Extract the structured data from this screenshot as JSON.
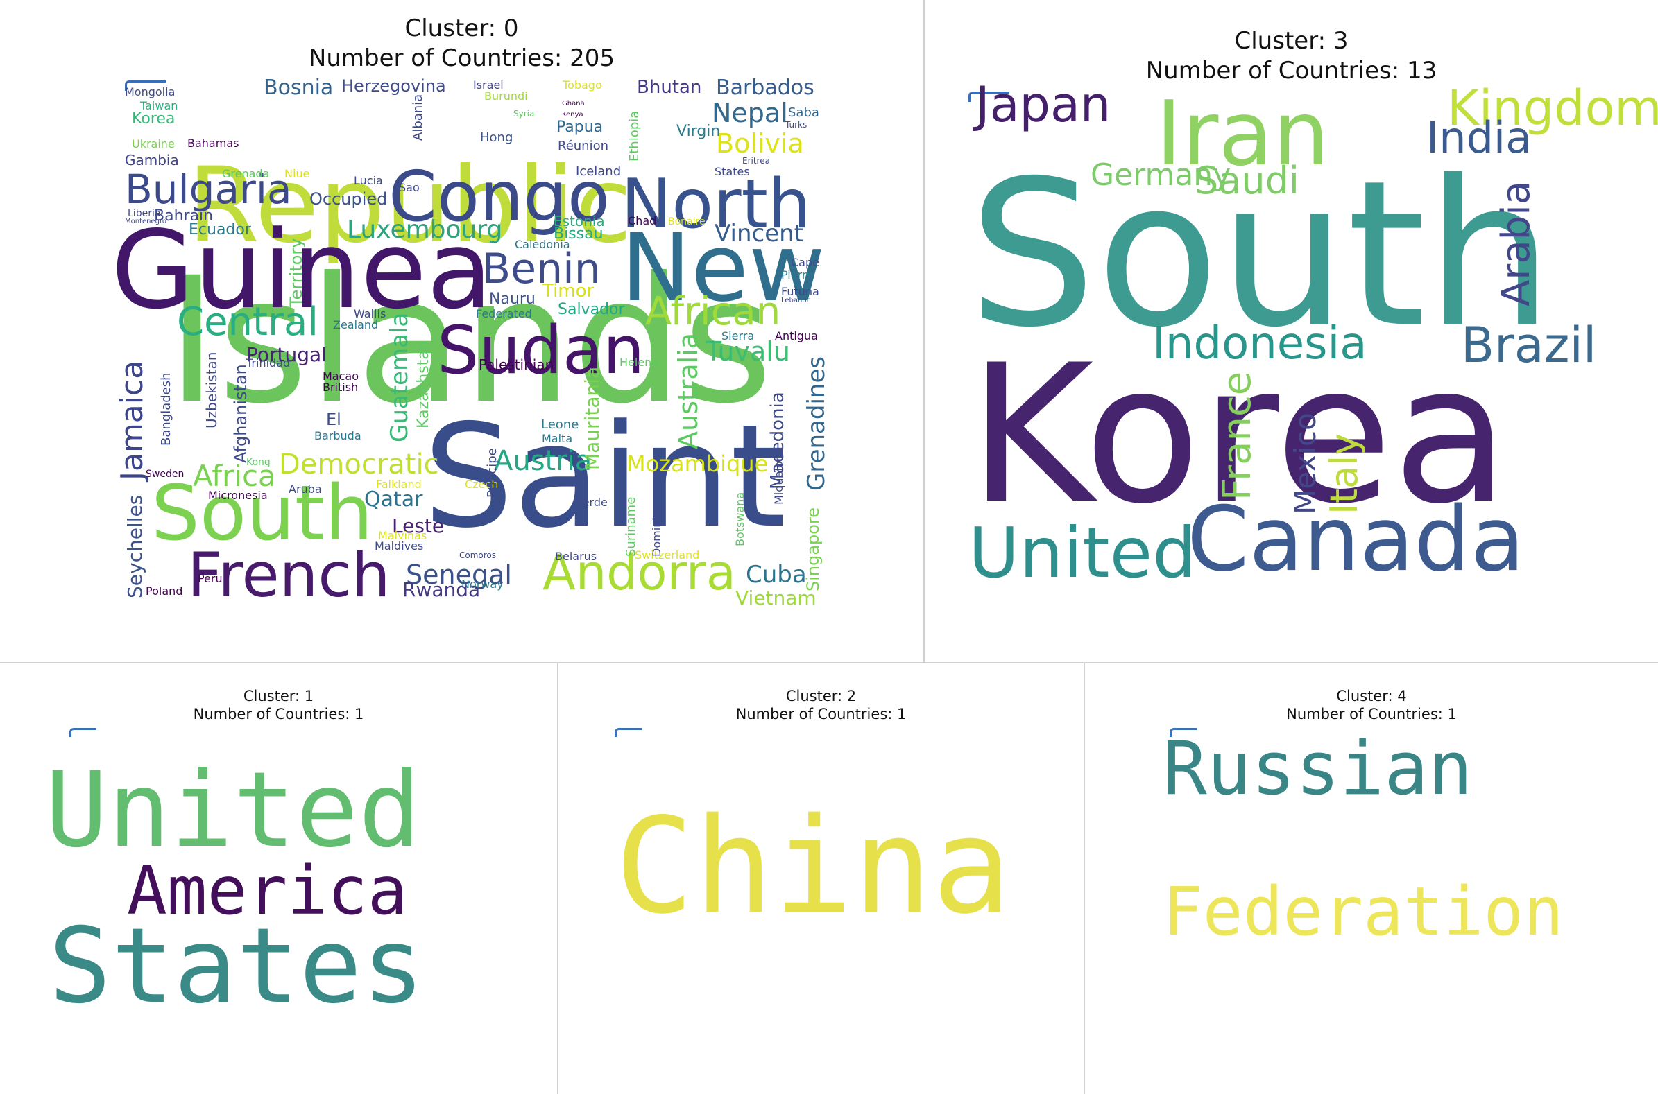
{
  "chart_data": [
    {
      "type": "wordcloud",
      "title_line1": "Cluster: 0",
      "title_line2": "Number of Countries: 205",
      "words": [
        {
          "text": "Islands",
          "color": "#6cc45c"
        },
        {
          "text": "Republic",
          "color": "#bfdc3a"
        },
        {
          "text": "Saint",
          "color": "#3a4d8b"
        },
        {
          "text": "Guinea",
          "color": "#42176a"
        },
        {
          "text": "New",
          "color": "#2f6e8d"
        },
        {
          "text": "Congo",
          "color": "#3b4b89"
        },
        {
          "text": "North",
          "color": "#37528c"
        },
        {
          "text": "Sudan",
          "color": "#46136a"
        },
        {
          "text": "South",
          "color": "#7cd250"
        },
        {
          "text": "French",
          "color": "#471a6c"
        },
        {
          "text": "Andorra",
          "color": "#a8db34"
        },
        {
          "text": "Bulgaria",
          "color": "#3d4a89"
        },
        {
          "text": "Central",
          "color": "#28ae80"
        },
        {
          "text": "Benin",
          "color": "#3e4c8a"
        },
        {
          "text": "African",
          "color": "#9fda3a"
        },
        {
          "text": "Jamaica",
          "color": "#3d468a"
        },
        {
          "text": "Democratic",
          "color": "#bfe02f"
        },
        {
          "text": "Mozambique",
          "color": "#d8e219"
        },
        {
          "text": "Austria",
          "color": "#24a884"
        },
        {
          "text": "Africa",
          "color": "#7ad151"
        },
        {
          "text": "Luxembourg",
          "color": "#2ea37f"
        },
        {
          "text": "Senegal",
          "color": "#3b518b"
        },
        {
          "text": "Cuba",
          "color": "#2c738e"
        },
        {
          "text": "Vietnam",
          "color": "#9fda3a"
        },
        {
          "text": "Bolivia",
          "color": "#dde318"
        },
        {
          "text": "Nepal",
          "color": "#31688e"
        },
        {
          "text": "Barbados",
          "color": "#365d8d"
        },
        {
          "text": "Bosnia",
          "color": "#33638d"
        },
        {
          "text": "Herzegovina",
          "color": "#3e4a89"
        },
        {
          "text": "Bhutan",
          "color": "#443983"
        },
        {
          "text": "Vincent",
          "color": "#365c8d"
        },
        {
          "text": "Tuvalu",
          "color": "#3dbc74"
        },
        {
          "text": "Portugal",
          "color": "#482374"
        },
        {
          "text": "Leste",
          "color": "#482071"
        },
        {
          "text": "Qatar",
          "color": "#2c728e"
        },
        {
          "text": "Guatemala",
          "color": "#3aba76"
        },
        {
          "text": "Grenadines",
          "color": "#31678e"
        },
        {
          "text": "Australia",
          "color": "#5ec962"
        },
        {
          "text": "Mauritania",
          "color": "#7ad151"
        },
        {
          "text": "Seychelles",
          "color": "#3b528b"
        },
        {
          "text": "Rwanda",
          "color": "#443a83"
        },
        {
          "text": "Ecuador",
          "color": "#2a788e"
        },
        {
          "text": "Occupied",
          "color": "#3b528b"
        },
        {
          "text": "Bahrain",
          "color": "#3e4989"
        },
        {
          "text": "Gambia",
          "color": "#414487"
        },
        {
          "text": "Korea",
          "color": "#35b779"
        },
        {
          "text": "Mongolia",
          "color": "#3e4c8a"
        },
        {
          "text": "Taiwan",
          "color": "#2ab07f"
        },
        {
          "text": "Ukraine",
          "color": "#7ad151"
        },
        {
          "text": "Palestinian",
          "color": "#440154"
        },
        {
          "text": "Macedonia",
          "color": "#3e4989"
        },
        {
          "text": "Singapore",
          "color": "#7ad151"
        },
        {
          "text": "Salvador",
          "color": "#22a884"
        },
        {
          "text": "Timor",
          "color": "#d8e219"
        },
        {
          "text": "Nauru",
          "color": "#3b528b"
        },
        {
          "text": "Bissau",
          "color": "#22a884"
        },
        {
          "text": "Estonia",
          "color": "#29af7f"
        },
        {
          "text": "Papua",
          "color": "#31688e"
        },
        {
          "text": "Albania",
          "color": "#3e4989"
        },
        {
          "text": "Israel",
          "color": "#414487"
        },
        {
          "text": "Tobago",
          "color": "#dde318"
        },
        {
          "text": "Burundi",
          "color": "#a2da37"
        },
        {
          "text": "Syria",
          "color": "#5ec962"
        },
        {
          "text": "Kenya",
          "color": "#440154"
        },
        {
          "text": "Ghana",
          "color": "#440154"
        },
        {
          "text": "Hong",
          "color": "#3b528b"
        },
        {
          "text": "Réunion",
          "color": "#3e4989"
        },
        {
          "text": "Virgin",
          "color": "#2a788e"
        },
        {
          "text": "Saba",
          "color": "#31688e"
        },
        {
          "text": "Turks",
          "color": "#3e4989"
        },
        {
          "text": "Iceland",
          "color": "#3e4989"
        },
        {
          "text": "States",
          "color": "#3e4989"
        },
        {
          "text": "Eritrea",
          "color": "#3e4989"
        },
        {
          "text": "Lucia",
          "color": "#3e4989"
        },
        {
          "text": "Sao",
          "color": "#3e4989"
        },
        {
          "text": "Bahamas",
          "color": "#440154"
        },
        {
          "text": "Grenada",
          "color": "#5ec962"
        },
        {
          "text": "Niue",
          "color": "#dde318"
        },
        {
          "text": "Liberia",
          "color": "#3e4989"
        },
        {
          "text": "Montenegro",
          "color": "#3e4989"
        },
        {
          "text": "Chad",
          "color": "#440154"
        },
        {
          "text": "Bonaire",
          "color": "#dde318"
        },
        {
          "text": "Caledonia",
          "color": "#2a788e"
        },
        {
          "text": "Cape",
          "color": "#3e4989"
        },
        {
          "text": "Pierre",
          "color": "#2a788e"
        },
        {
          "text": "Futuna",
          "color": "#3e4989"
        },
        {
          "text": "Lebanon",
          "color": "#3e4989"
        },
        {
          "text": "Antigua",
          "color": "#440154"
        },
        {
          "text": "Sierra",
          "color": "#2a788e"
        },
        {
          "text": "Helena",
          "color": "#5ec962"
        },
        {
          "text": "Wallis",
          "color": "#3e4989"
        },
        {
          "text": "Zealand",
          "color": "#2a788e"
        },
        {
          "text": "Federated",
          "color": "#2a788e"
        },
        {
          "text": "Macao",
          "color": "#440154"
        },
        {
          "text": "British",
          "color": "#440154"
        },
        {
          "text": "El",
          "color": "#3e4989"
        },
        {
          "text": "Barbuda",
          "color": "#2a788e"
        },
        {
          "text": "Kong",
          "color": "#5ec962"
        },
        {
          "text": "Aruba",
          "color": "#3e4989"
        },
        {
          "text": "Micronesia",
          "color": "#440154"
        },
        {
          "text": "Falkland",
          "color": "#dde318"
        },
        {
          "text": "Czech",
          "color": "#dde318"
        },
        {
          "text": "Malvinas",
          "color": "#dde318"
        },
        {
          "text": "Maldives",
          "color": "#3e4989"
        },
        {
          "text": "Comoros",
          "color": "#3e4989"
        },
        {
          "text": "Belarus",
          "color": "#3e4989"
        },
        {
          "text": "Switzerland",
          "color": "#dde318"
        },
        {
          "text": "Norway",
          "color": "#2a788e"
        },
        {
          "text": "Poland",
          "color": "#440154"
        },
        {
          "text": "Peru",
          "color": "#440154"
        },
        {
          "text": "Sweden",
          "color": "#440154"
        },
        {
          "text": "Trinidad",
          "color": "#3e4989"
        },
        {
          "text": "Leone",
          "color": "#2a788e"
        },
        {
          "text": "Malta",
          "color": "#2a788e"
        },
        {
          "text": "Verde",
          "color": "#3e4989"
        },
        {
          "text": "Miquelon",
          "color": "#3e4989"
        },
        {
          "text": "Suriname",
          "color": "#5ec962"
        },
        {
          "text": "Dominica",
          "color": "#3e4989"
        },
        {
          "text": "Botswana",
          "color": "#5ec962"
        },
        {
          "text": "Principe",
          "color": "#3e4989"
        },
        {
          "text": "Kazakhstan",
          "color": "#5ec962"
        },
        {
          "text": "Territory",
          "color": "#5ec962"
        },
        {
          "text": "Afghanistan",
          "color": "#3e4989"
        },
        {
          "text": "Uzbekistan",
          "color": "#3e4989"
        },
        {
          "text": "Bangladesh",
          "color": "#3e4989"
        },
        {
          "text": "Ethiopia",
          "color": "#5ec962"
        }
      ]
    },
    {
      "type": "wordcloud",
      "title_line1": "Cluster: 3",
      "title_line2": "Number of Countries: 13",
      "words": [
        {
          "text": "South",
          "color": "#3e9b92"
        },
        {
          "text": "Korea",
          "color": "#46256e"
        },
        {
          "text": "Canada",
          "color": "#3d5b8e"
        },
        {
          "text": "United",
          "color": "#2e8f8c"
        },
        {
          "text": "Iran",
          "color": "#8fd162"
        },
        {
          "text": "Kingdom",
          "color": "#c1df3a"
        },
        {
          "text": "Japan",
          "color": "#44206b"
        },
        {
          "text": "India",
          "color": "#3b5a8d"
        },
        {
          "text": "Brazil",
          "color": "#3b6a8e"
        },
        {
          "text": "Indonesia",
          "color": "#28968a"
        },
        {
          "text": "Germany",
          "color": "#7cca6a"
        },
        {
          "text": "Saudi",
          "color": "#7ecb67"
        },
        {
          "text": "Arabia",
          "color": "#42478a"
        },
        {
          "text": "France",
          "color": "#86cf5e"
        },
        {
          "text": "Mexico",
          "color": "#42478a"
        },
        {
          "text": "Italy",
          "color": "#bfdc3f"
        }
      ]
    },
    {
      "type": "wordcloud",
      "title_line1": "Cluster: 1",
      "title_line2": "Number of Countries: 1",
      "words": [
        {
          "text": "United",
          "color": "#63bd70"
        },
        {
          "text": "America",
          "color": "#440f5a"
        },
        {
          "text": "States",
          "color": "#3a8b88"
        }
      ]
    },
    {
      "type": "wordcloud",
      "title_line1": "Cluster: 2",
      "title_line2": "Number of Countries: 1",
      "words": [
        {
          "text": "China",
          "color": "#e6e04a"
        }
      ]
    },
    {
      "type": "wordcloud",
      "title_line1": "Cluster: 4",
      "title_line2": "Number of Countries: 1",
      "words": [
        {
          "text": "Russian",
          "color": "#3a8586"
        },
        {
          "text": "Federation",
          "color": "#ede65a"
        }
      ]
    }
  ]
}
